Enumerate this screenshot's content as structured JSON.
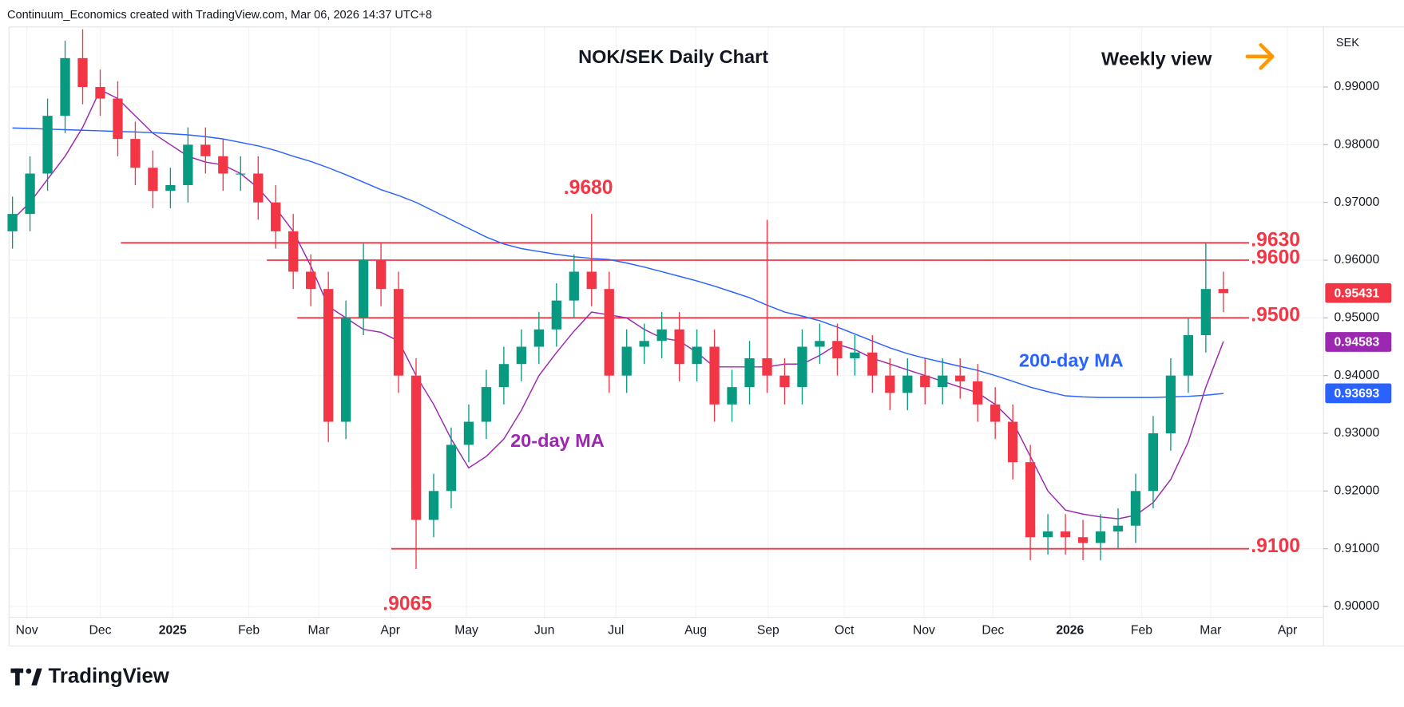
{
  "chart_data": {
    "type": "candlestick",
    "header": "Continuum_Economics created with TradingView.com, Mar 06, 2026 14:37 UTC+8",
    "title": "NOK/SEK Daily Chart",
    "subtitle": "Weekly view",
    "currency": "SEK",
    "watermark": "TradingView",
    "up_color": "#089981",
    "down_color": "#f23645",
    "categories": [
      null,
      null,
      null,
      null,
      null,
      null,
      null,
      null,
      null,
      null,
      null,
      null,
      null,
      null,
      null,
      null,
      null,
      null,
      null,
      null,
      null,
      null,
      null,
      null,
      null,
      null,
      null,
      null,
      null,
      null,
      null,
      null,
      null,
      null,
      null,
      null,
      null,
      null,
      null,
      null,
      null,
      null,
      null,
      null,
      null,
      null,
      null,
      null,
      null,
      null,
      null,
      null,
      null,
      null,
      null,
      null,
      null,
      null,
      null,
      null,
      null,
      null,
      null,
      null,
      null,
      null,
      null,
      null,
      null,
      null
    ],
    "open": [
      0.965,
      0.968,
      0.975,
      0.985,
      0.995,
      0.99,
      0.988,
      0.981,
      0.976,
      0.972,
      0.973,
      0.98,
      0.978,
      0.975,
      0.975,
      0.97,
      0.965,
      0.958,
      0.955,
      0.932,
      0.95,
      0.96,
      0.955,
      0.94,
      0.915,
      0.92,
      0.928,
      0.932,
      0.938,
      0.942,
      0.945,
      0.948,
      0.953,
      0.958,
      0.955,
      0.94,
      0.945,
      0.946,
      0.948,
      0.942,
      0.945,
      0.935,
      0.938,
      0.943,
      0.94,
      0.938,
      0.945,
      0.946,
      0.943,
      0.944,
      0.94,
      0.937,
      0.94,
      0.938,
      0.94,
      0.939,
      0.935,
      0.932,
      0.925,
      0.912,
      0.913,
      0.912,
      0.911,
      0.913,
      0.914,
      0.92,
      0.93,
      0.94,
      0.947,
      0.955
    ],
    "high": [
      0.971,
      0.978,
      0.988,
      0.998,
      1.0,
      0.993,
      0.991,
      0.984,
      0.979,
      0.976,
      0.983,
      0.983,
      0.981,
      0.978,
      0.978,
      0.973,
      0.968,
      0.961,
      0.958,
      0.953,
      0.963,
      0.963,
      0.958,
      0.943,
      0.923,
      0.931,
      0.935,
      0.941,
      0.945,
      0.948,
      0.951,
      0.956,
      0.961,
      0.968,
      0.958,
      0.948,
      0.949,
      0.951,
      0.951,
      0.948,
      0.948,
      0.941,
      0.946,
      0.967,
      0.943,
      0.948,
      0.949,
      0.949,
      0.947,
      0.947,
      0.943,
      0.943,
      0.943,
      0.943,
      0.943,
      0.942,
      0.938,
      0.935,
      0.928,
      0.916,
      0.916,
      0.915,
      0.916,
      0.917,
      0.923,
      0.933,
      0.943,
      0.95,
      0.963,
      0.958
    ],
    "low": [
      0.962,
      0.965,
      0.972,
      0.982,
      0.987,
      0.985,
      0.978,
      0.973,
      0.969,
      0.969,
      0.97,
      0.975,
      0.972,
      0.972,
      0.967,
      0.962,
      0.955,
      0.952,
      0.9285,
      0.929,
      0.947,
      0.952,
      0.937,
      0.9065,
      0.912,
      0.917,
      0.925,
      0.929,
      0.935,
      0.939,
      0.942,
      0.945,
      0.95,
      0.952,
      0.937,
      0.937,
      0.942,
      0.943,
      0.939,
      0.939,
      0.932,
      0.932,
      0.935,
      0.937,
      0.935,
      0.935,
      0.942,
      0.94,
      0.94,
      0.937,
      0.934,
      0.934,
      0.935,
      0.935,
      0.936,
      0.932,
      0.929,
      0.922,
      0.908,
      0.909,
      0.909,
      0.908,
      0.908,
      0.91,
      0.911,
      0.917,
      0.927,
      0.937,
      0.944,
      0.951
    ],
    "close": [
      0.968,
      0.975,
      0.985,
      0.995,
      0.99,
      0.988,
      0.981,
      0.976,
      0.972,
      0.973,
      0.98,
      0.978,
      0.975,
      0.975,
      0.97,
      0.965,
      0.958,
      0.955,
      0.932,
      0.95,
      0.96,
      0.955,
      0.94,
      0.915,
      0.92,
      0.928,
      0.932,
      0.938,
      0.942,
      0.945,
      0.948,
      0.953,
      0.958,
      0.955,
      0.94,
      0.945,
      0.946,
      0.948,
      0.942,
      0.945,
      0.935,
      0.938,
      0.943,
      0.94,
      0.938,
      0.945,
      0.946,
      0.943,
      0.944,
      0.94,
      0.937,
      0.94,
      0.938,
      0.94,
      0.939,
      0.935,
      0.932,
      0.925,
      0.912,
      0.913,
      0.912,
      0.911,
      0.913,
      0.914,
      0.92,
      0.93,
      0.94,
      0.947,
      0.955,
      0.9543
    ],
    "series": [
      {
        "name": "20-day MA",
        "color": "#9c27b0",
        "values": [
          0.967,
          0.97,
          0.974,
          0.978,
          0.983,
          0.9895,
          0.988,
          0.985,
          0.982,
          0.98,
          0.978,
          0.977,
          0.9765,
          0.975,
          0.9725,
          0.969,
          0.965,
          0.959,
          0.952,
          0.95,
          0.948,
          0.9475,
          0.946,
          0.94,
          0.935,
          0.929,
          0.924,
          0.926,
          0.929,
          0.934,
          0.94,
          0.944,
          0.9477,
          0.951,
          0.9505,
          0.95,
          0.948,
          0.9465,
          0.946,
          0.944,
          0.9415,
          0.9415,
          0.9415,
          0.9415,
          0.942,
          0.942,
          0.9435,
          0.9454,
          0.9445,
          0.943,
          0.942,
          0.941,
          0.94,
          0.939,
          0.938,
          0.937,
          0.935,
          0.932,
          0.926,
          0.92,
          0.9167,
          0.916,
          0.9155,
          0.9152,
          0.9158,
          0.918,
          0.922,
          0.9285,
          0.938,
          0.9459
        ]
      },
      {
        "name": "200-day MA",
        "color": "#2962ff",
        "values": [
          0.9829,
          0.9828,
          0.9827,
          0.9826,
          0.9825,
          0.9824,
          0.9823,
          0.9822,
          0.9821,
          0.9819,
          0.9817,
          0.9814,
          0.981,
          0.9804,
          0.9798,
          0.979,
          0.978,
          0.9771,
          0.976,
          0.9748,
          0.9735,
          0.9722,
          0.9712,
          0.97,
          0.9685,
          0.967,
          0.9655,
          0.964,
          0.9628,
          0.962,
          0.9615,
          0.961,
          0.9606,
          0.9603,
          0.9601,
          0.9595,
          0.9588,
          0.958,
          0.9572,
          0.9564,
          0.9555,
          0.9545,
          0.9535,
          0.9522,
          0.951,
          0.9503,
          0.9495,
          0.9484,
          0.9472,
          0.946,
          0.9448,
          0.9438,
          0.943,
          0.9423,
          0.9416,
          0.9409,
          0.94,
          0.939,
          0.938,
          0.9372,
          0.9365,
          0.9363,
          0.9362,
          0.9362,
          0.9362,
          0.9362,
          0.9363,
          0.9364,
          0.9366,
          0.9369
        ]
      }
    ],
    "ylim": [
      0.8981,
      1.0004
    ],
    "yticks": [
      {
        "value": 0.9,
        "label": "0.90000"
      },
      {
        "value": 0.91,
        "label": "0.91000"
      },
      {
        "value": 0.92,
        "label": "0.92000"
      },
      {
        "value": 0.93,
        "label": "0.93000"
      },
      {
        "value": 0.94,
        "label": "0.94000"
      },
      {
        "value": 0.95,
        "label": "0.95000"
      },
      {
        "value": 0.96,
        "label": "0.96000"
      },
      {
        "value": 0.97,
        "label": "0.97000"
      },
      {
        "value": 0.98,
        "label": "0.98000"
      },
      {
        "value": 0.99,
        "label": "0.99000"
      }
    ],
    "xlim": [
      -0.2,
      74.7
    ],
    "xticks": [
      {
        "value": 0.82,
        "label": "Nov"
      },
      {
        "value": 5.0,
        "label": "Dec"
      },
      {
        "value": 9.13,
        "label": "2025"
      },
      {
        "value": 13.47,
        "label": "Feb"
      },
      {
        "value": 17.45,
        "label": "Mar"
      },
      {
        "value": 21.53,
        "label": "Apr"
      },
      {
        "value": 25.87,
        "label": "May"
      },
      {
        "value": 30.31,
        "label": "Jun"
      },
      {
        "value": 34.39,
        "label": "Jul"
      },
      {
        "value": 38.93,
        "label": "Aug"
      },
      {
        "value": 43.06,
        "label": "Sep"
      },
      {
        "value": 47.4,
        "label": "Oct"
      },
      {
        "value": 51.94,
        "label": "Nov"
      },
      {
        "value": 55.87,
        "label": "Dec"
      },
      {
        "value": 60.26,
        "label": "2026"
      },
      {
        "value": 64.34,
        "label": "Feb"
      },
      {
        "value": 68.27,
        "label": "Mar"
      },
      {
        "value": 72.65,
        "label": "Apr"
      }
    ],
    "grid": true,
    "level_color": "#f23645",
    "levels": [
      {
        "value": 0.963,
        "label": ".9630"
      },
      {
        "value": 0.96,
        "label": ".9600"
      },
      {
        "value": 0.95,
        "label": ".9500"
      },
      {
        "value": 0.91,
        "label": ".9100"
      }
    ],
    "annotations": [
      {
        "value": 0.968,
        "label": ".9680"
      },
      {
        "value": 0.9065,
        "label": ".9065"
      }
    ],
    "last_values": [
      {
        "value": 0.95431,
        "label": "0.95431",
        "color": "#f23645"
      },
      {
        "value": 0.94583,
        "label": "0.94583",
        "color": "#9c27b0"
      },
      {
        "value": 0.93693,
        "label": "0.93693",
        "color": "#2962ff"
      }
    ]
  }
}
